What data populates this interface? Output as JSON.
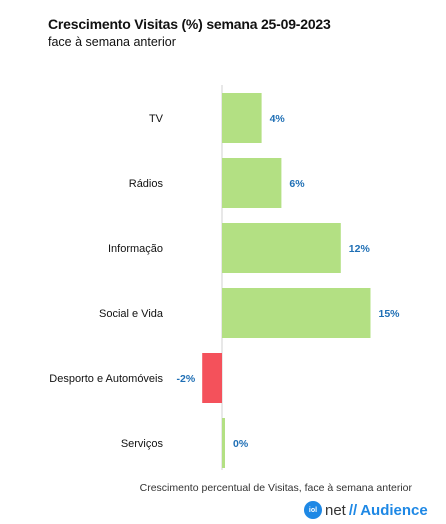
{
  "chart_data": {
    "type": "bar",
    "orientation": "horizontal",
    "title": "Crescimento Visitas (%) semana 25-09-2023",
    "subtitle": "face à semana anterior",
    "categories": [
      "TV",
      "Rádios",
      "Informação",
      "Social e Vida",
      "Desporto e Automóveis",
      "Serviços"
    ],
    "values": [
      4,
      6,
      12,
      15,
      -2,
      0
    ],
    "value_labels": [
      "4%",
      "6%",
      "12%",
      "15%",
      "-2%",
      "0%"
    ],
    "xlim": [
      -4,
      15
    ],
    "colors": {
      "positive": "#b3e083",
      "negative": "#f4515b",
      "value_label": "#1f6fb5"
    },
    "grid": false,
    "footnote": "Crescimento percentual de Visitas, face à semana anterior"
  },
  "brand": {
    "badge": "iol",
    "net": "net",
    "slash": "//",
    "audience": "Audience"
  }
}
